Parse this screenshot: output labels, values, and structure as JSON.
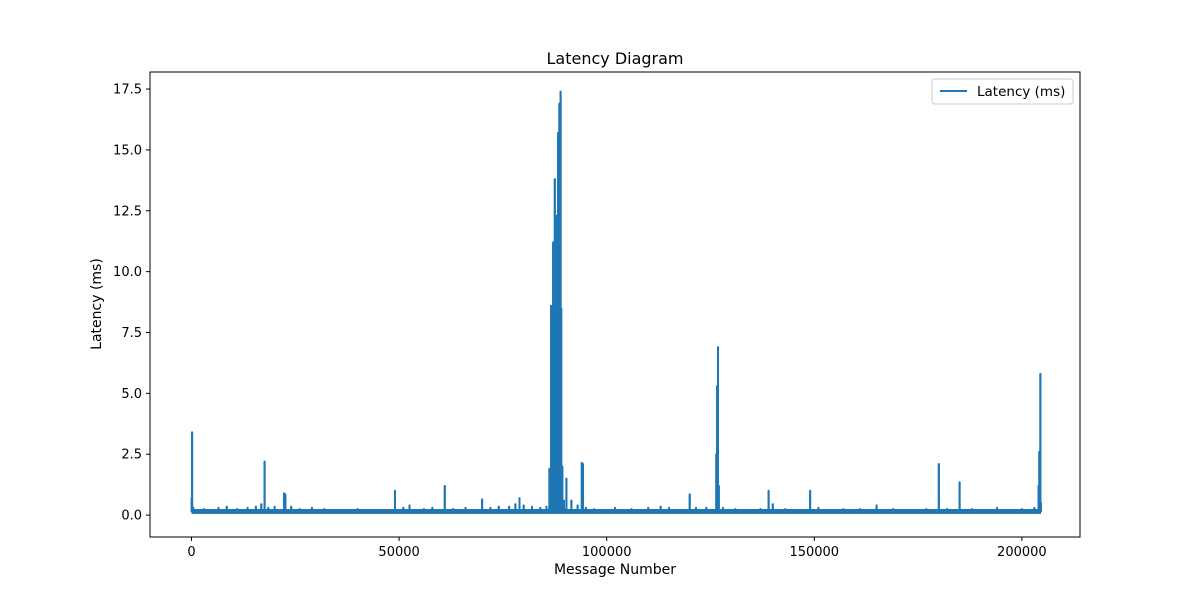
{
  "chart_data": {
    "type": "line",
    "title": "Latency Diagram",
    "xlabel": "Message Number",
    "ylabel": "Latency (ms)",
    "xlim": [
      -10000,
      214000
    ],
    "ylim": [
      -0.9,
      18.2
    ],
    "xticks": [
      0,
      50000,
      100000,
      150000,
      200000
    ],
    "xtick_labels": [
      "0",
      "50000",
      "100000",
      "150000",
      "200000"
    ],
    "yticks": [
      0.0,
      2.5,
      5.0,
      7.5,
      10.0,
      12.5,
      15.0,
      17.5
    ],
    "ytick_labels": [
      "0.0",
      "2.5",
      "5.0",
      "7.5",
      "10.0",
      "12.5",
      "15.0",
      "17.5"
    ],
    "grid": false,
    "legend_position": "top-right",
    "series": [
      {
        "name": "Latency (ms)",
        "color": "#1f77b4",
        "baseline": 0.15,
        "x_range": [
          0,
          204600
        ],
        "spikes": [
          [
            50,
            0.7
          ],
          [
            150,
            3.4
          ],
          [
            400,
            0.3
          ],
          [
            1500,
            0.2
          ],
          [
            3000,
            0.25
          ],
          [
            5000,
            0.2
          ],
          [
            6500,
            0.3
          ],
          [
            8500,
            0.35
          ],
          [
            11000,
            0.25
          ],
          [
            13500,
            0.3
          ],
          [
            15500,
            0.35
          ],
          [
            16800,
            0.45
          ],
          [
            17600,
            2.2
          ],
          [
            18500,
            0.3
          ],
          [
            20000,
            0.35
          ],
          [
            22300,
            0.9
          ],
          [
            22600,
            0.85
          ],
          [
            24000,
            0.35
          ],
          [
            26000,
            0.25
          ],
          [
            29000,
            0.3
          ],
          [
            32000,
            0.25
          ],
          [
            36000,
            0.2
          ],
          [
            40000,
            0.25
          ],
          [
            44000,
            0.2
          ],
          [
            49000,
            1.0
          ],
          [
            51000,
            0.3
          ],
          [
            52500,
            0.4
          ],
          [
            56000,
            0.25
          ],
          [
            58000,
            0.3
          ],
          [
            61000,
            1.2
          ],
          [
            63000,
            0.25
          ],
          [
            66000,
            0.3
          ],
          [
            70000,
            0.65
          ],
          [
            72000,
            0.3
          ],
          [
            74000,
            0.35
          ],
          [
            76500,
            0.35
          ],
          [
            78000,
            0.45
          ],
          [
            79000,
            0.7
          ],
          [
            80000,
            0.4
          ],
          [
            82000,
            0.35
          ],
          [
            84000,
            0.3
          ],
          [
            85500,
            0.35
          ],
          [
            86200,
            1.9
          ],
          [
            86600,
            8.6
          ],
          [
            86900,
            2.5
          ],
          [
            87100,
            11.2
          ],
          [
            87300,
            3.5
          ],
          [
            87500,
            13.8
          ],
          [
            87700,
            6.0
          ],
          [
            87900,
            12.3
          ],
          [
            88100,
            4.7
          ],
          [
            88300,
            15.7
          ],
          [
            88450,
            7.0
          ],
          [
            88600,
            16.9
          ],
          [
            88750,
            9.0
          ],
          [
            88900,
            17.4
          ],
          [
            89050,
            8.5
          ],
          [
            89300,
            2.0
          ],
          [
            89700,
            0.6
          ],
          [
            90300,
            1.5
          ],
          [
            91500,
            0.6
          ],
          [
            93000,
            0.4
          ],
          [
            94000,
            2.15
          ],
          [
            94300,
            2.1
          ],
          [
            95000,
            0.3
          ],
          [
            97000,
            0.25
          ],
          [
            99000,
            0.2
          ],
          [
            102000,
            0.3
          ],
          [
            106000,
            0.25
          ],
          [
            110000,
            0.3
          ],
          [
            113000,
            0.35
          ],
          [
            115000,
            0.3
          ],
          [
            117000,
            0.2
          ],
          [
            120000,
            0.85
          ],
          [
            121500,
            0.3
          ],
          [
            124000,
            0.3
          ],
          [
            126400,
            2.5
          ],
          [
            126600,
            5.3
          ],
          [
            126800,
            6.9
          ],
          [
            127000,
            1.2
          ],
          [
            128000,
            0.3
          ],
          [
            131000,
            0.25
          ],
          [
            134000,
            0.2
          ],
          [
            137000,
            0.25
          ],
          [
            139000,
            1.0
          ],
          [
            140000,
            0.45
          ],
          [
            143000,
            0.25
          ],
          [
            146000,
            0.2
          ],
          [
            149000,
            1.0
          ],
          [
            151000,
            0.3
          ],
          [
            154000,
            0.2
          ],
          [
            157000,
            0.25
          ],
          [
            161000,
            0.25
          ],
          [
            165000,
            0.4
          ],
          [
            169000,
            0.25
          ],
          [
            173000,
            0.2
          ],
          [
            177000,
            0.25
          ],
          [
            180000,
            2.1
          ],
          [
            182000,
            0.25
          ],
          [
            185000,
            1.35
          ],
          [
            188000,
            0.25
          ],
          [
            191000,
            0.2
          ],
          [
            194000,
            0.3
          ],
          [
            197000,
            0.2
          ],
          [
            200000,
            0.25
          ],
          [
            203000,
            0.3
          ],
          [
            204000,
            1.2
          ],
          [
            204200,
            2.6
          ],
          [
            204450,
            5.8
          ],
          [
            204600,
            0.5
          ]
        ]
      }
    ]
  }
}
